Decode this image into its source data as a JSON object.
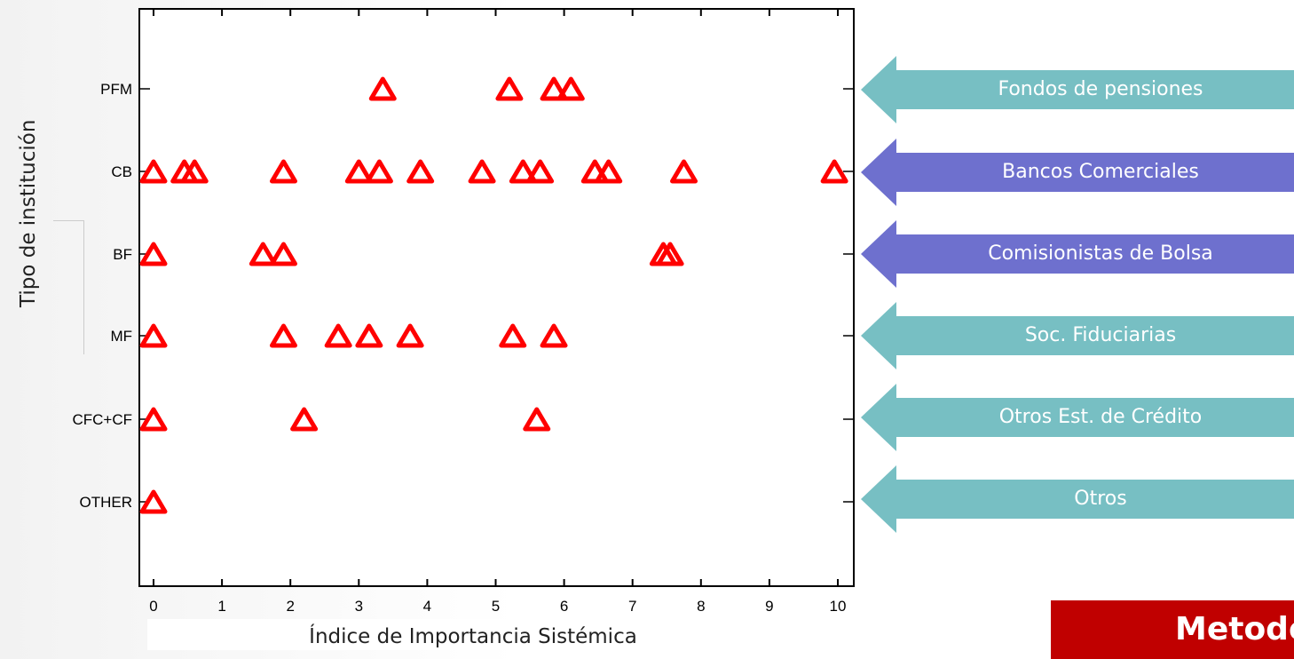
{
  "chart_data": {
    "type": "scatter",
    "xlabel": "Índice de Importancia Sistémica",
    "ylabel": "Tipo de institución",
    "xlim": [
      -0.2,
      10.3
    ],
    "x_ticks": [
      "0",
      "1",
      "2",
      "3",
      "4",
      "5",
      "6",
      "7",
      "8",
      "9",
      "10"
    ],
    "categories": [
      "PFM",
      "CB",
      "BF",
      "MF",
      "CFC+CF",
      "OTHER"
    ],
    "marker": "triangle",
    "marker_color": "#ff0000",
    "points": {
      "PFM": [
        3.35,
        5.2,
        5.85,
        6.1
      ],
      "CB": [
        0.0,
        0.45,
        0.6,
        1.9,
        3.0,
        3.3,
        3.9,
        4.8,
        5.4,
        5.65,
        6.45,
        6.65,
        7.75,
        9.95
      ],
      "BF": [
        0.0,
        1.6,
        1.9,
        7.45,
        7.55
      ],
      "MF": [
        0.0,
        1.9,
        2.7,
        3.15,
        3.75,
        5.25,
        5.85
      ],
      "CFC+CF": [
        0.0,
        2.2,
        5.6
      ],
      "OTHER": [
        0.0
      ]
    }
  },
  "annotations": [
    {
      "label": "Fondos de pensiones",
      "color": "#77bfc3"
    },
    {
      "label": "Bancos Comerciales",
      "color": "#6e70ce"
    },
    {
      "label": "Comisionistas de Bolsa",
      "color": "#6e70ce"
    },
    {
      "label": "Soc. Fiduciarias",
      "color": "#77bfc3"
    },
    {
      "label": "Otros Est. de Crédito",
      "color": "#77bfc3"
    },
    {
      "label": "Otros",
      "color": "#77bfc3"
    }
  ],
  "footer": {
    "label": "Metodo"
  }
}
